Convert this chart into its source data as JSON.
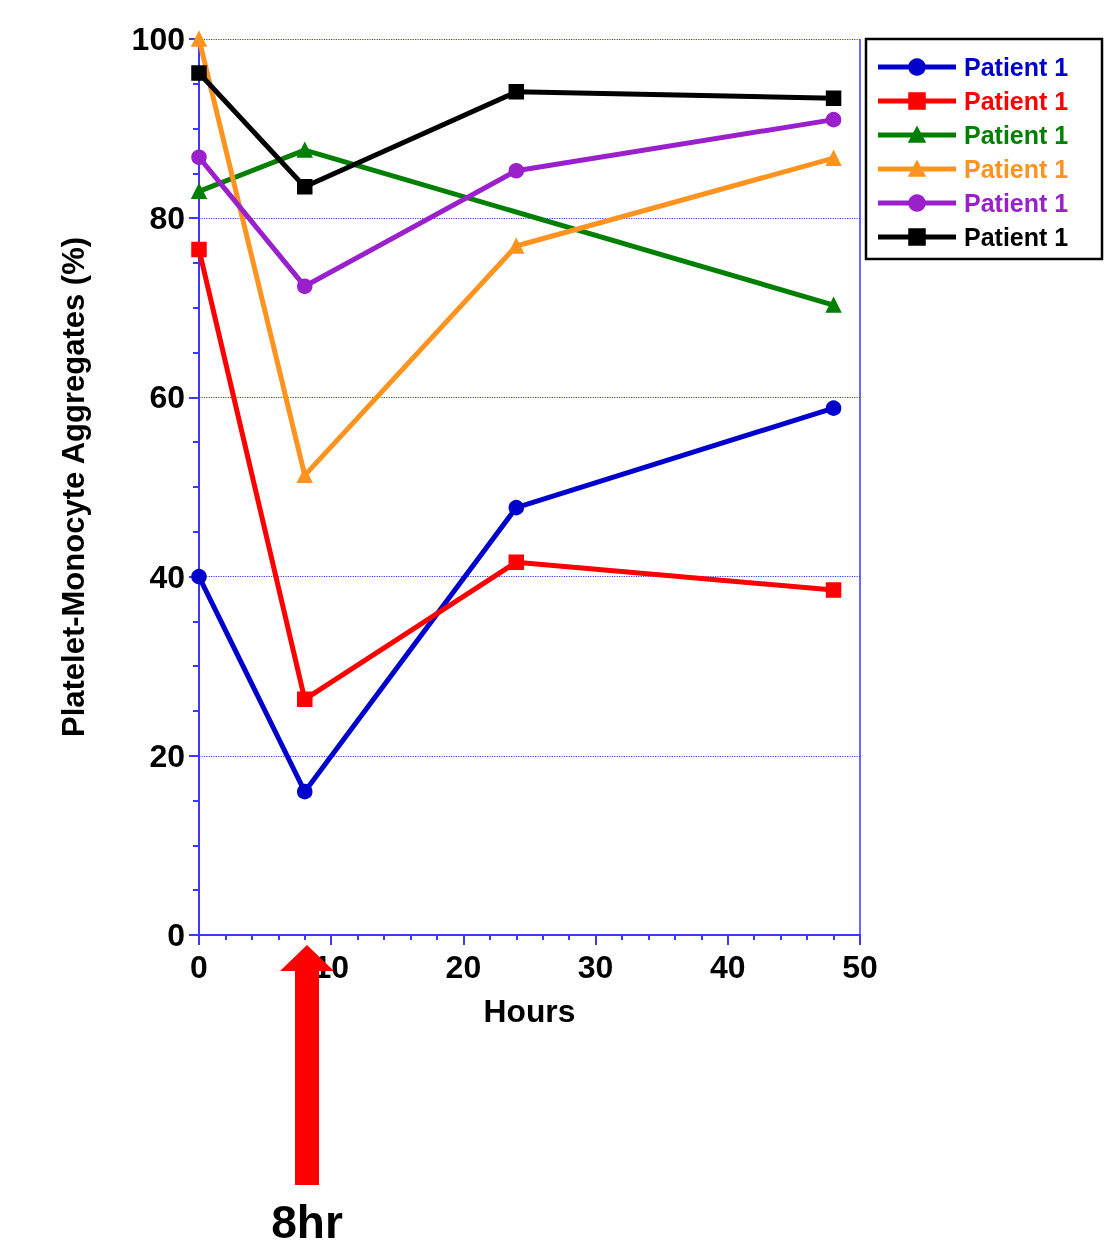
{
  "chart_data": {
    "type": "line",
    "xlabel": "Hours",
    "ylabel": "Platelet-Monocyte Aggregates (%)",
    "xlim": [
      0,
      50
    ],
    "xticks": [
      0,
      10,
      20,
      30,
      40,
      50
    ],
    "ylim": [
      0,
      100
    ],
    "yticks": [
      0,
      20,
      40,
      60,
      80,
      100
    ],
    "grid": "y",
    "legend": "top right",
    "series": [
      {
        "name": "Patient 1",
        "color": "#0000cc",
        "marker": "circle",
        "x": [
          0,
          8,
          24,
          48
        ],
        "values": [
          40,
          16,
          47.7,
          58.8
        ]
      },
      {
        "name": "Patient 1",
        "color": "#ff0000",
        "marker": "square",
        "x": [
          0,
          8,
          24,
          48
        ],
        "values": [
          76.5,
          26.3,
          41.6,
          38.5
        ]
      },
      {
        "name": "Patient 1",
        "color": "#007f00",
        "marker": "triangle",
        "x": [
          0,
          8,
          48
        ],
        "values": [
          83,
          87.6,
          70.3
        ]
      },
      {
        "name": "Patient 1",
        "color": "#ff9320",
        "marker": "triangle",
        "x": [
          0,
          8,
          24,
          48
        ],
        "values": [
          100,
          51.3,
          76.9,
          86.7
        ]
      },
      {
        "name": "Patient 1",
        "color": "#9a20cc",
        "marker": "circle",
        "x": [
          0,
          8,
          24,
          48
        ],
        "values": [
          86.8,
          72.4,
          85.3,
          91
        ]
      },
      {
        "name": "Patient 1",
        "color": "#000000",
        "marker": "square",
        "x": [
          0,
          8,
          24,
          48
        ],
        "values": [
          96.2,
          83.5,
          94.1,
          93.4
        ]
      }
    ],
    "annotations": [
      "8hr"
    ]
  }
}
